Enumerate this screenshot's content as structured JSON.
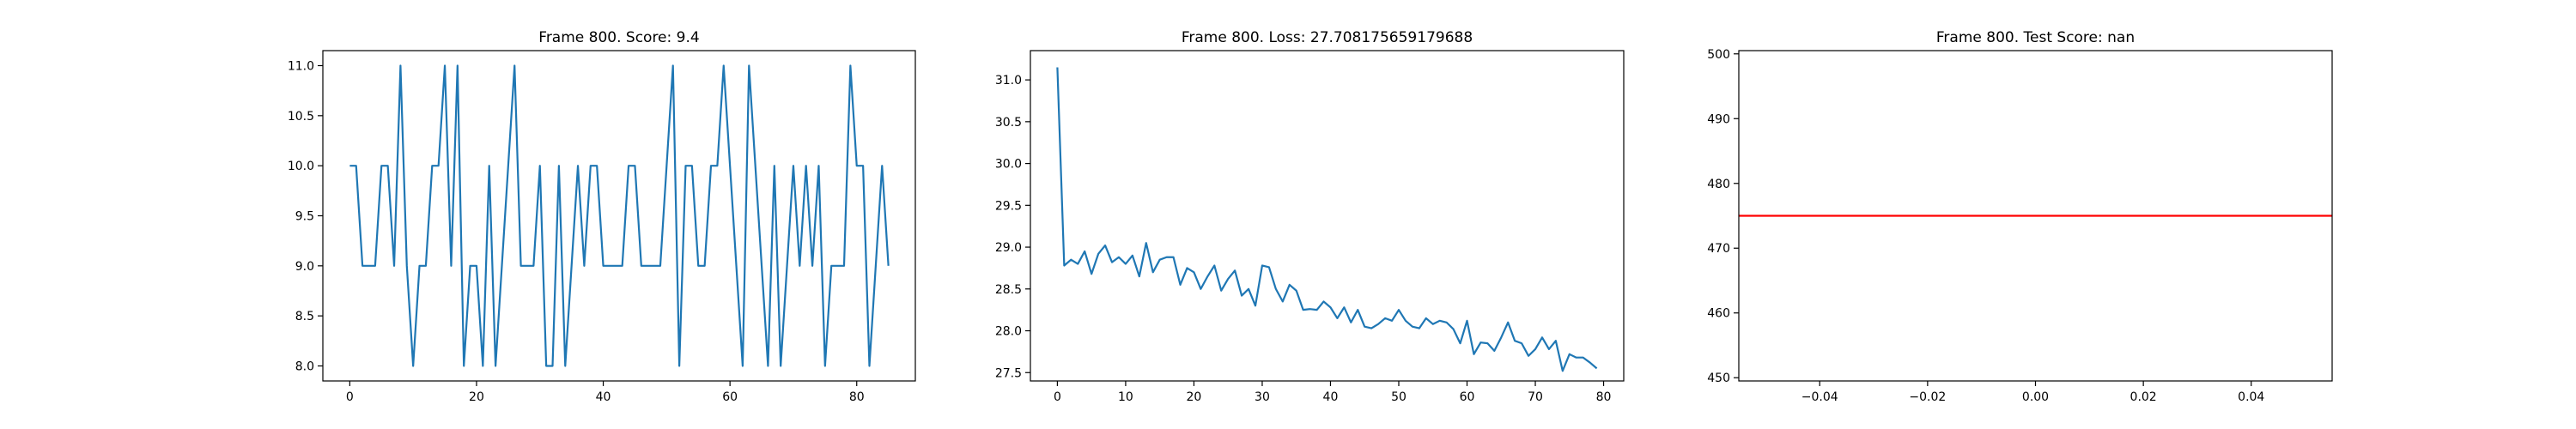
{
  "chart_data": [
    {
      "type": "line",
      "title": "Frame 800. Score: 9.4",
      "xlabel": "",
      "ylabel": "",
      "xlim": [
        -4.25,
        89.25
      ],
      "ylim": [
        7.85,
        11.15
      ],
      "xticks": [
        0,
        20,
        40,
        60,
        80
      ],
      "xtick_labels": [
        "0",
        "20",
        "40",
        "60",
        "80"
      ],
      "yticks": [
        8.0,
        8.5,
        9.0,
        9.5,
        10.0,
        10.5,
        11.0
      ],
      "ytick_labels": [
        "8.0",
        "8.5",
        "9.0",
        "9.5",
        "10.0",
        "10.5",
        "11.0"
      ],
      "grid": false,
      "legend": "none",
      "series": [
        {
          "color": "#1f77b4",
          "x": [
            0,
            1,
            2,
            3,
            4,
            5,
            6,
            7,
            8,
            9,
            10,
            11,
            12,
            13,
            14,
            15,
            16,
            17,
            18,
            19,
            20,
            21,
            22,
            23,
            24,
            25,
            26,
            27,
            28,
            29,
            30,
            31,
            32,
            33,
            34,
            35,
            36,
            37,
            38,
            39,
            40,
            41,
            42,
            43,
            44,
            45,
            46,
            47,
            48,
            49,
            50,
            51,
            52,
            53,
            54,
            55,
            56,
            57,
            58,
            59,
            60,
            61,
            62,
            63,
            64,
            65,
            66,
            67,
            68,
            69,
            70,
            71,
            72,
            73,
            74,
            75,
            76,
            77,
            78,
            79,
            80,
            81,
            82,
            83,
            84,
            85
          ],
          "y": [
            10,
            10,
            9,
            9,
            9,
            10,
            10,
            9,
            11,
            9,
            8,
            9,
            9,
            10,
            10,
            11,
            9,
            11,
            8,
            9,
            9,
            8,
            10,
            8,
            9,
            10,
            11,
            9,
            9,
            9,
            10,
            8,
            8,
            10,
            8,
            9,
            10,
            9,
            10,
            10,
            9,
            9,
            9,
            9,
            10,
            10,
            9,
            9,
            9,
            9,
            10,
            11,
            8,
            10,
            10,
            9,
            9,
            10,
            10,
            11,
            10,
            9,
            8,
            11,
            10,
            9,
            8,
            10,
            8,
            9,
            10,
            9,
            10,
            9,
            10,
            8,
            9,
            9,
            9,
            11,
            10,
            10,
            8,
            9,
            10,
            9
          ]
        }
      ]
    },
    {
      "type": "line",
      "title": "Frame 800. Loss: 27.708175659179688",
      "xlabel": "",
      "ylabel": "",
      "xlim": [
        -3.95,
        82.95
      ],
      "ylim": [
        27.4,
        31.35
      ],
      "xticks": [
        0,
        10,
        20,
        30,
        40,
        50,
        60,
        70,
        80
      ],
      "xtick_labels": [
        "0",
        "10",
        "20",
        "30",
        "40",
        "50",
        "60",
        "70",
        "80"
      ],
      "yticks": [
        27.5,
        28.0,
        28.5,
        29.0,
        29.5,
        30.0,
        30.5,
        31.0
      ],
      "ytick_labels": [
        "27.5",
        "28.0",
        "28.5",
        "29.0",
        "29.5",
        "30.0",
        "30.5",
        "31.0"
      ],
      "grid": false,
      "legend": "none",
      "series": [
        {
          "color": "#1f77b4",
          "x": [
            0,
            1,
            2,
            3,
            4,
            5,
            6,
            7,
            8,
            9,
            10,
            11,
            12,
            13,
            14,
            15,
            16,
            17,
            18,
            19,
            20,
            21,
            22,
            23,
            24,
            25,
            26,
            27,
            28,
            29,
            30,
            31,
            32,
            33,
            34,
            35,
            36,
            37,
            38,
            39,
            40,
            41,
            42,
            43,
            44,
            45,
            46,
            47,
            48,
            49,
            50,
            51,
            52,
            53,
            54,
            55,
            56,
            57,
            58,
            59,
            60,
            61,
            62,
            63,
            64,
            65,
            66,
            67,
            68,
            69,
            70,
            71,
            72,
            73,
            74,
            75,
            76,
            77,
            78,
            79
          ],
          "y": [
            31.15,
            28.78,
            28.85,
            28.8,
            28.95,
            28.68,
            28.92,
            29.02,
            28.82,
            28.88,
            28.8,
            28.9,
            28.65,
            29.05,
            28.7,
            28.85,
            28.88,
            28.88,
            28.55,
            28.75,
            28.7,
            28.5,
            28.65,
            28.78,
            28.48,
            28.62,
            28.72,
            28.42,
            28.5,
            28.3,
            28.78,
            28.76,
            28.5,
            28.35,
            28.55,
            28.48,
            28.25,
            28.26,
            28.25,
            28.35,
            28.28,
            28.15,
            28.28,
            28.1,
            28.25,
            28.05,
            28.03,
            28.08,
            28.15,
            28.12,
            28.25,
            28.12,
            28.05,
            28.03,
            28.15,
            28.08,
            28.12,
            28.1,
            28.02,
            27.85,
            28.12,
            27.72,
            27.86,
            27.85,
            27.76,
            27.92,
            28.1,
            27.88,
            27.85,
            27.7,
            27.78,
            27.92,
            27.78,
            27.88,
            27.52,
            27.72,
            27.68,
            27.68,
            27.62,
            27.55
          ]
        }
      ]
    },
    {
      "type": "line",
      "title": "Frame 800. Test Score: nan",
      "xlabel": "",
      "ylabel": "",
      "xlim": [
        -0.055,
        0.055
      ],
      "ylim": [
        449.5,
        500.5
      ],
      "xticks": [
        -0.04,
        -0.02,
        0.0,
        0.02,
        0.04
      ],
      "xtick_labels": [
        "−0.04",
        "−0.02",
        "0.00",
        "0.02",
        "0.04"
      ],
      "yticks": [
        450,
        460,
        470,
        480,
        490,
        500
      ],
      "ytick_labels": [
        "450",
        "460",
        "470",
        "480",
        "490",
        "500"
      ],
      "grid": false,
      "legend": "none",
      "hline": {
        "y": 475,
        "color": "#ff0000"
      },
      "series": []
    }
  ]
}
